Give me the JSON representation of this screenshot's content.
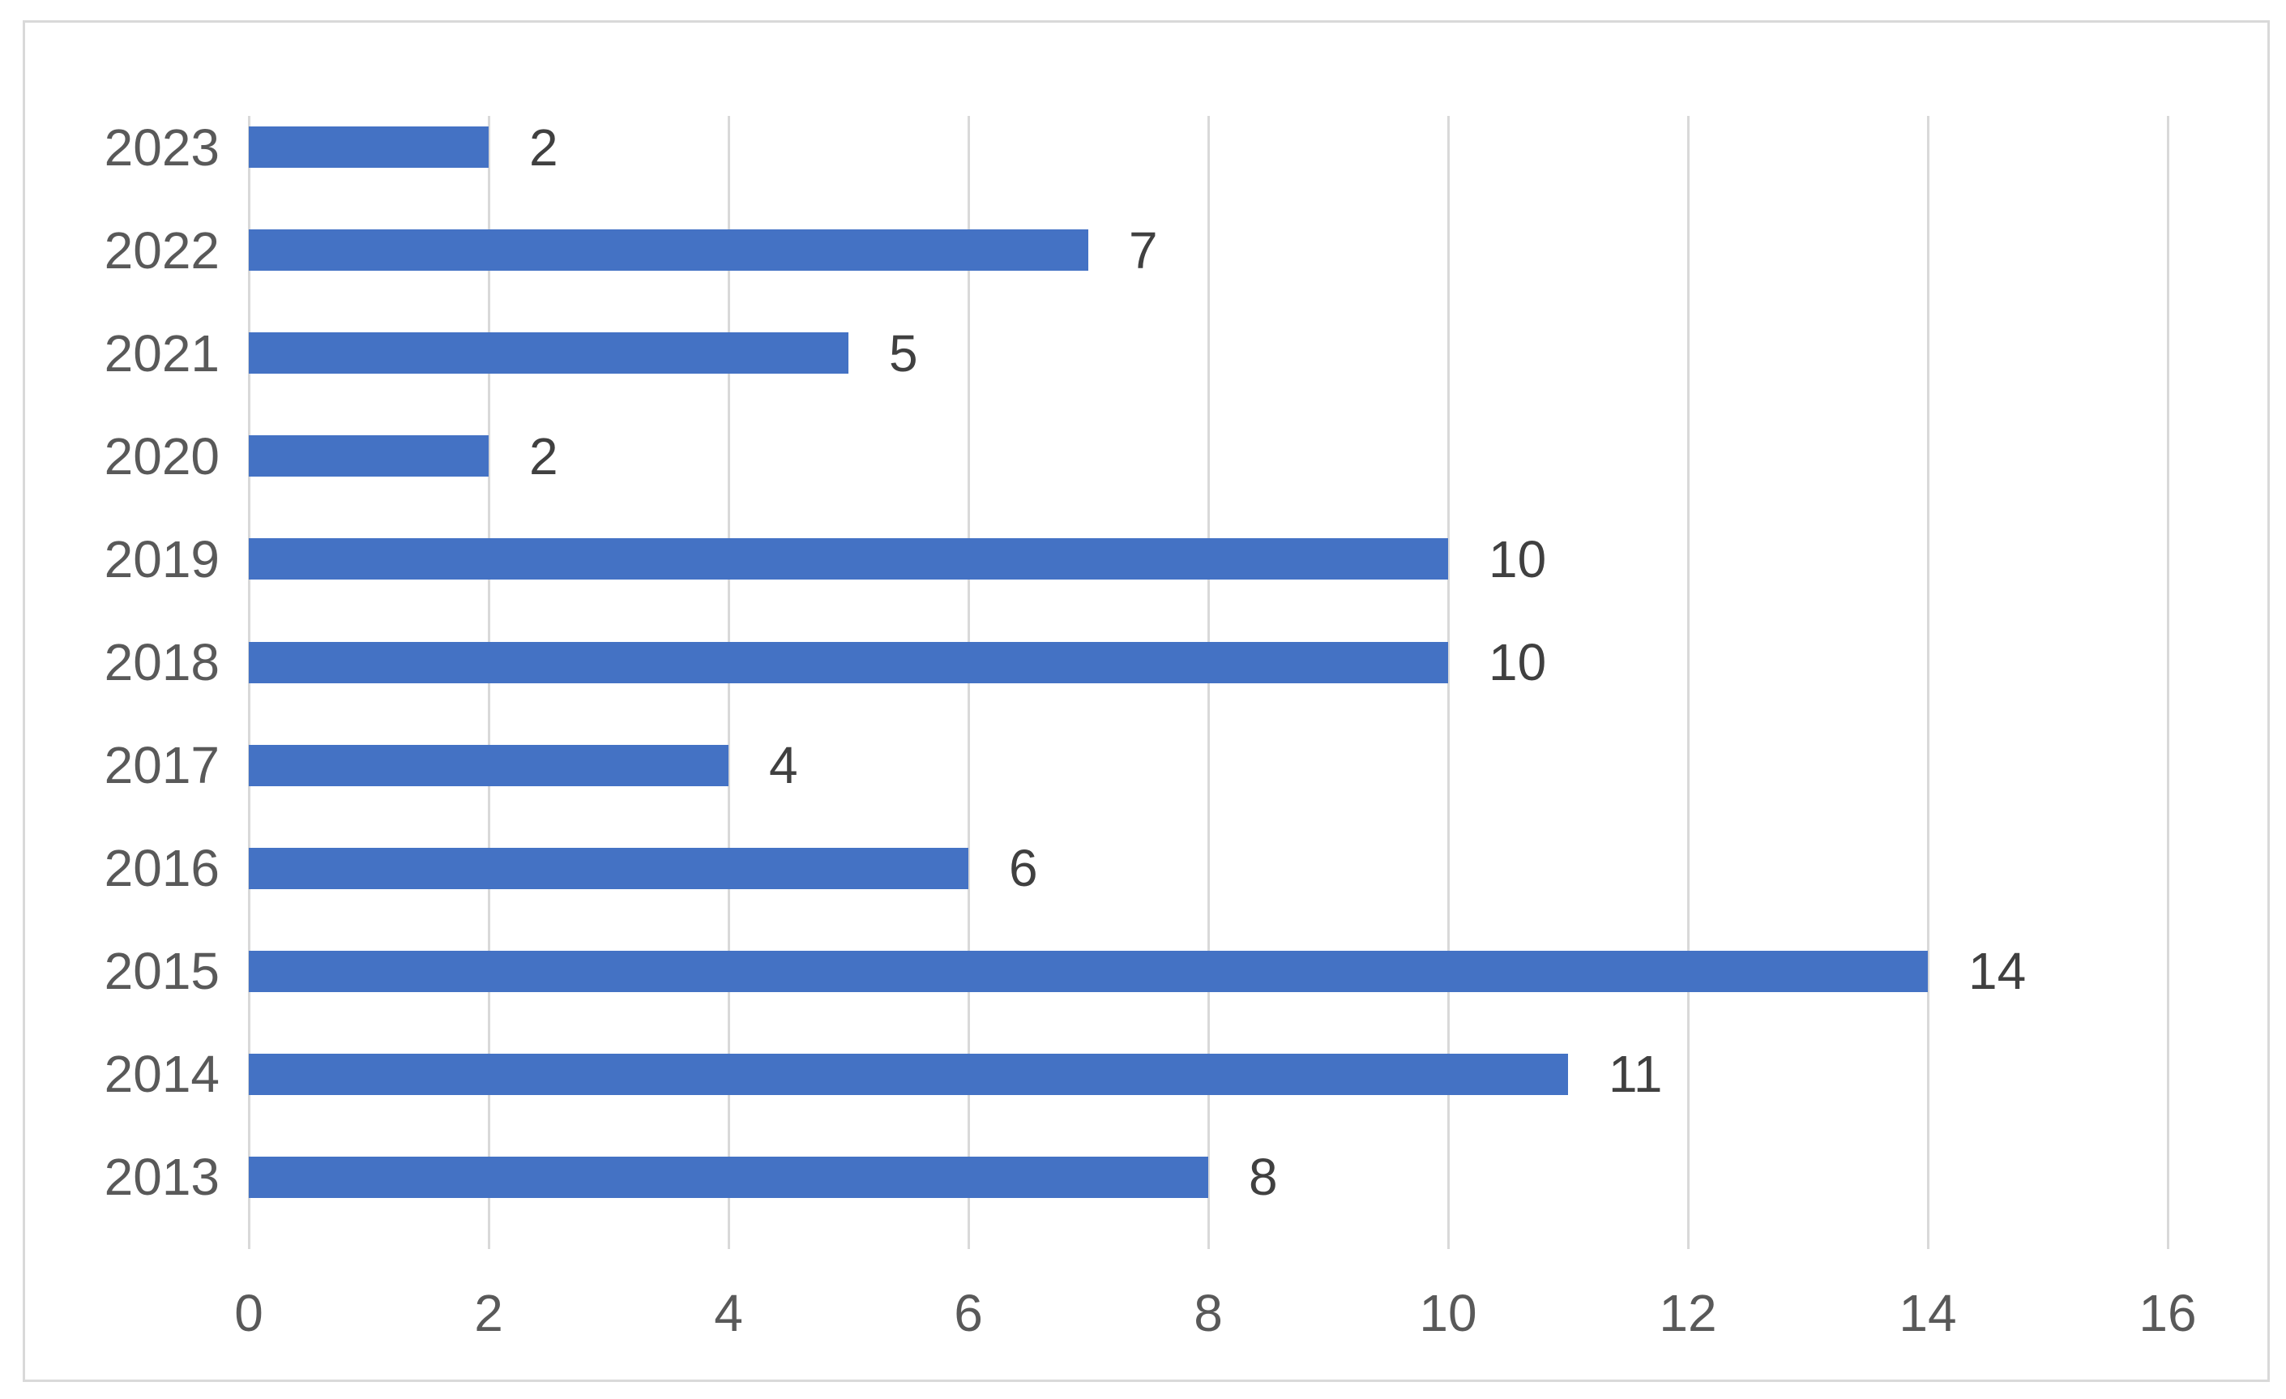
{
  "chart_data": {
    "type": "bar",
    "orientation": "horizontal",
    "title": "",
    "xlabel": "",
    "ylabel": "",
    "categories": [
      "2023",
      "2022",
      "2021",
      "2020",
      "2019",
      "2018",
      "2017",
      "2016",
      "2015",
      "2014",
      "2013"
    ],
    "values": [
      2,
      7,
      5,
      2,
      10,
      10,
      4,
      6,
      14,
      11,
      8
    ],
    "data_labels": [
      "2",
      "7",
      "5",
      "2",
      "10",
      "10",
      "4",
      "6",
      "14",
      "11",
      "8"
    ],
    "x_ticks": [
      "0",
      "2",
      "4",
      "6",
      "8",
      "10",
      "12",
      "14",
      "16"
    ],
    "xlim": [
      0,
      16
    ],
    "grid": "vertical",
    "legend": "none",
    "colors": {
      "bar": "#4472C4",
      "gridline": "#D9D9D9",
      "chart_border": "#D9D9D9",
      "axis_label": "#595959",
      "data_label": "#404040",
      "background": "#FFFFFF"
    }
  }
}
